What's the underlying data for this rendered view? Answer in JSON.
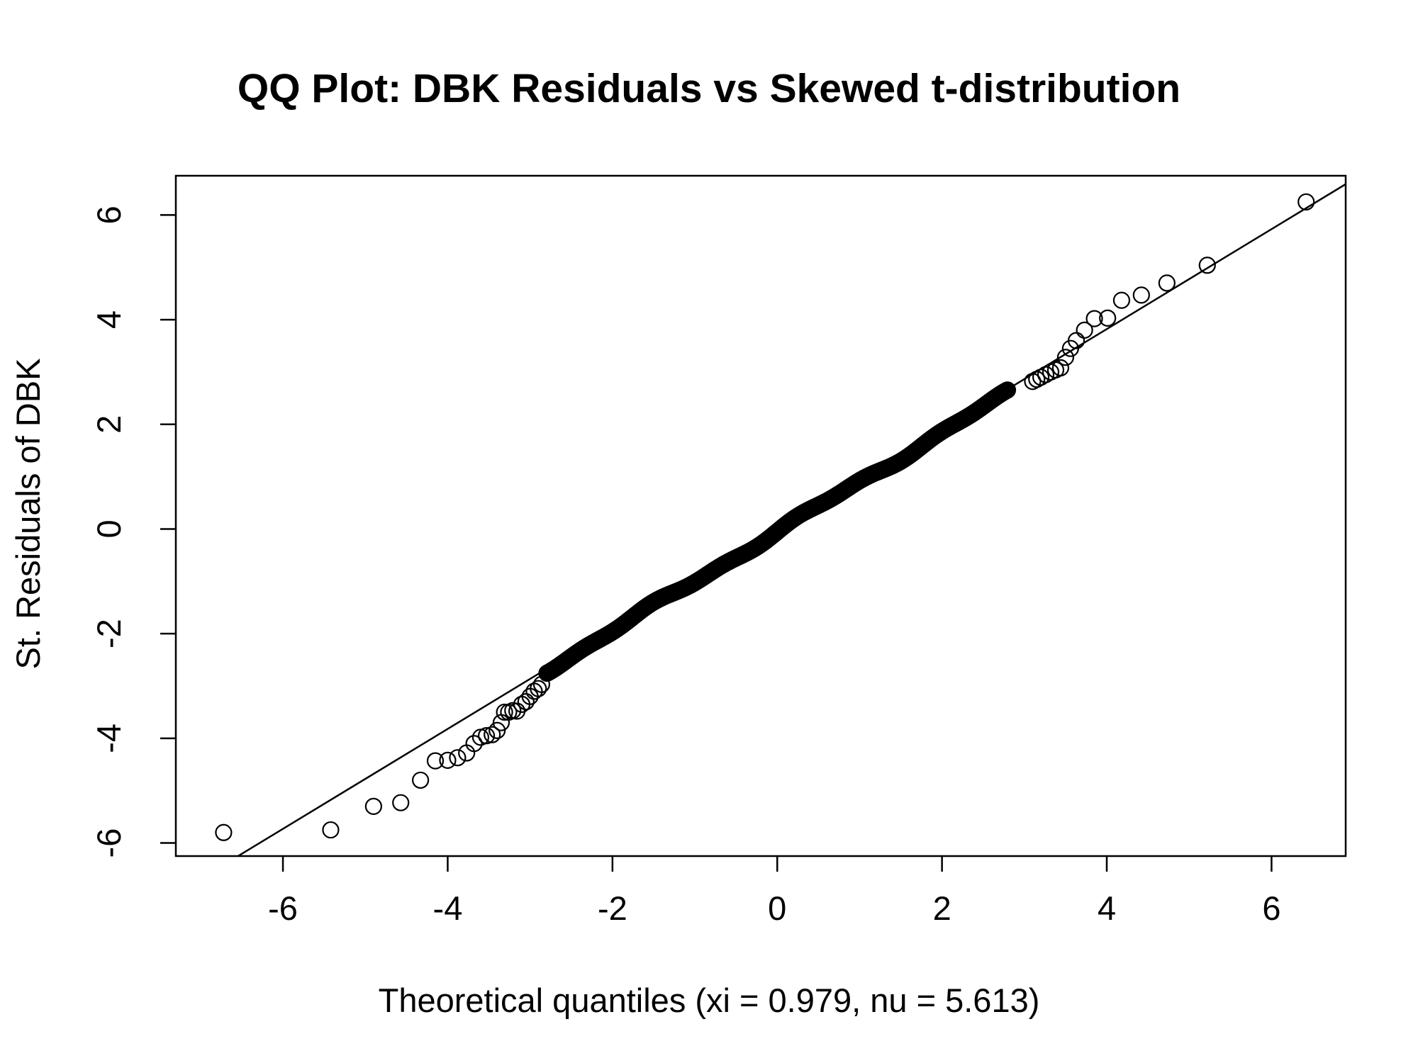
{
  "chart_data": {
    "type": "scatter",
    "title": "QQ Plot: DBK Residuals vs Skewed t-distribution",
    "xlabel": "Theoretical quantiles (xi = 0.979, nu = 5.613)",
    "ylabel": "St. Residuals of DBK",
    "xlim": [
      -7.3,
      6.9
    ],
    "ylim": [
      -6.25,
      6.75
    ],
    "x_ticks": [
      -6,
      -4,
      -2,
      0,
      2,
      4,
      6
    ],
    "y_ticks": [
      -6,
      -4,
      -2,
      0,
      2,
      4,
      6
    ],
    "x_tick_labels": [
      "-6",
      "-4",
      "-2",
      "0",
      "2",
      "4",
      "6"
    ],
    "y_tick_labels": [
      "-6",
      "-4",
      "-2",
      "0",
      "2",
      "4",
      "6"
    ],
    "grid": false,
    "reference_line": {
      "slope": 0.955,
      "intercept": 0.0
    },
    "marker": "open-circle",
    "dense_body": {
      "x_range": [
        -2.8,
        2.8
      ],
      "y_range": [
        -2.7,
        2.6
      ]
    },
    "points": [
      [
        -6.72,
        -5.8
      ],
      [
        -5.42,
        -5.75
      ],
      [
        -4.9,
        -5.3
      ],
      [
        -4.57,
        -5.23
      ],
      [
        -4.33,
        -4.8
      ],
      [
        -4.15,
        -4.43
      ],
      [
        -4.0,
        -4.42
      ],
      [
        -3.88,
        -4.37
      ],
      [
        -3.77,
        -4.28
      ],
      [
        -3.68,
        -4.1
      ],
      [
        -3.6,
        -3.98
      ],
      [
        -3.53,
        -3.95
      ],
      [
        -3.46,
        -3.93
      ],
      [
        -3.4,
        -3.85
      ],
      [
        -3.35,
        -3.7
      ],
      [
        -3.31,
        -3.5
      ],
      [
        -3.26,
        -3.5
      ],
      [
        -3.21,
        -3.47
      ],
      [
        -3.16,
        -3.48
      ],
      [
        -3.1,
        -3.35
      ],
      [
        -3.05,
        -3.3
      ],
      [
        -3.0,
        -3.2
      ],
      [
        -2.95,
        -3.1
      ],
      [
        -2.9,
        -3.05
      ],
      [
        -2.86,
        -2.97
      ],
      [
        3.1,
        2.82
      ],
      [
        3.15,
        2.86
      ],
      [
        3.2,
        2.9
      ],
      [
        3.26,
        2.95
      ],
      [
        3.32,
        3.0
      ],
      [
        3.38,
        3.04
      ],
      [
        3.44,
        3.08
      ],
      [
        3.5,
        3.28
      ],
      [
        3.56,
        3.45
      ],
      [
        3.63,
        3.6
      ],
      [
        3.73,
        3.8
      ],
      [
        3.85,
        4.02
      ],
      [
        4.01,
        4.03
      ],
      [
        4.18,
        4.37
      ],
      [
        4.42,
        4.47
      ],
      [
        4.73,
        4.7
      ],
      [
        5.22,
        5.04
      ],
      [
        6.42,
        6.25
      ]
    ]
  }
}
